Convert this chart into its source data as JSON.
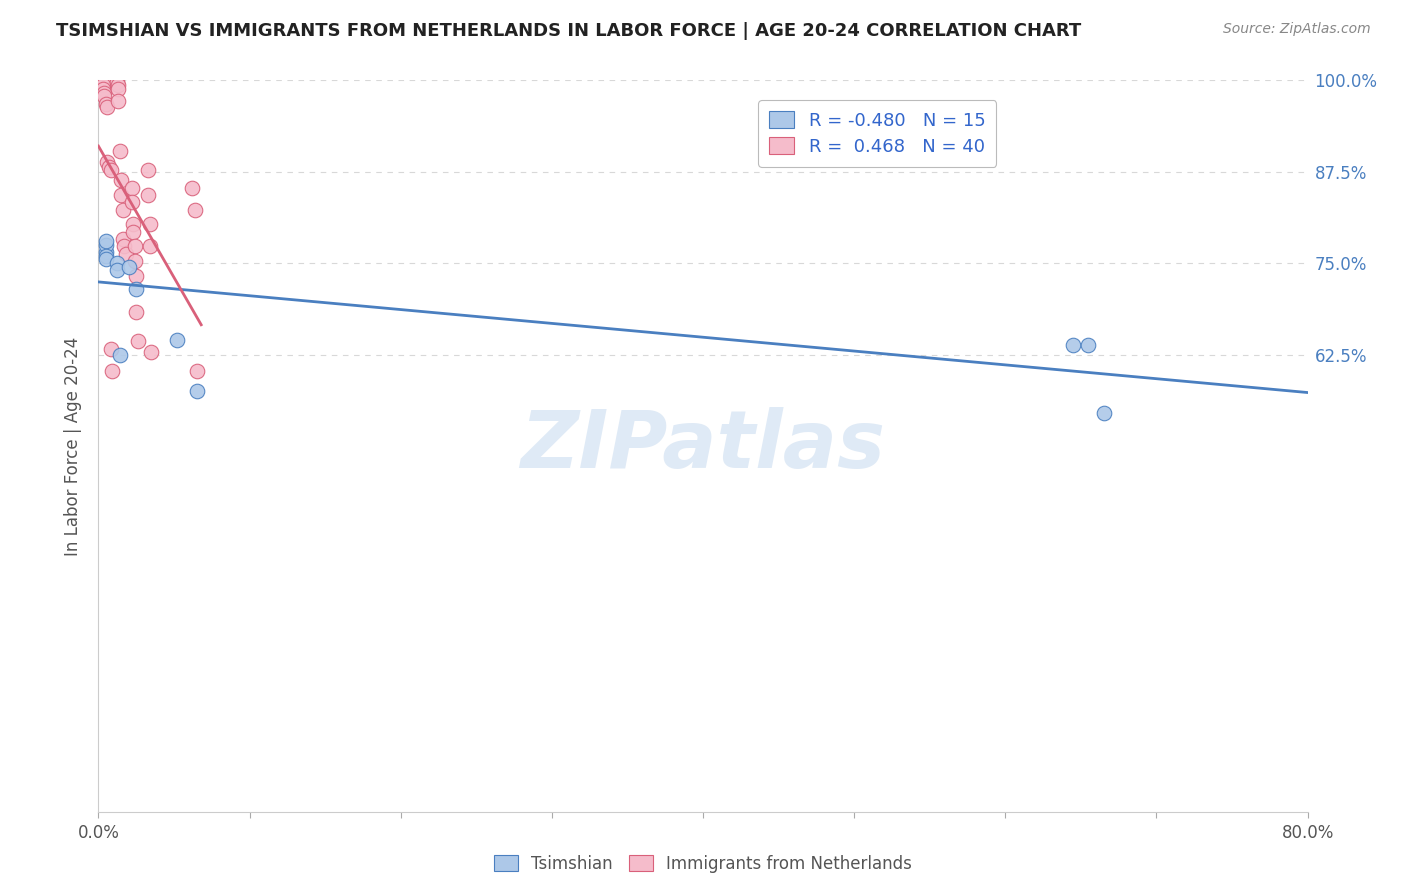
{
  "title": "TSIMSHIAN VS IMMIGRANTS FROM NETHERLANDS IN LABOR FORCE | AGE 20-24 CORRELATION CHART",
  "source": "Source: ZipAtlas.com",
  "ylabel": "In Labor Force | Age 20-24",
  "xmin": 0.0,
  "xmax": 0.8,
  "ymin": 0.0,
  "ymax": 1.0,
  "xticks": [
    0.0,
    0.1,
    0.2,
    0.3,
    0.4,
    0.5,
    0.6,
    0.7,
    0.8
  ],
  "xticklabels": [
    "0.0%",
    "",
    "",
    "",
    "",
    "",
    "",
    "",
    "80.0%"
  ],
  "yticks": [
    0.0,
    0.625,
    0.75,
    0.875,
    1.0
  ],
  "yticklabels": [
    "",
    "62.5%",
    "75.0%",
    "87.5%",
    "100.0%"
  ],
  "blue_color": "#adc8e8",
  "pink_color": "#f5bccb",
  "blue_line_color": "#4a7fc0",
  "pink_line_color": "#d9607a",
  "R_blue": -0.48,
  "N_blue": 15,
  "R_pink": 0.468,
  "N_pink": 40,
  "tsimshian_x": [
    0.005,
    0.005,
    0.005,
    0.005,
    0.005,
    0.012,
    0.012,
    0.014,
    0.02,
    0.025,
    0.052,
    0.065,
    0.645,
    0.655,
    0.665
  ],
  "tsimshian_y": [
    0.765,
    0.775,
    0.78,
    0.76,
    0.755,
    0.75,
    0.74,
    0.625,
    0.745,
    0.715,
    0.645,
    0.575,
    0.638,
    0.638,
    0.545
  ],
  "netherlands_x": [
    0.002,
    0.003,
    0.003,
    0.004,
    0.004,
    0.005,
    0.006,
    0.006,
    0.007,
    0.008,
    0.008,
    0.009,
    0.012,
    0.013,
    0.013,
    0.013,
    0.014,
    0.015,
    0.015,
    0.016,
    0.016,
    0.017,
    0.018,
    0.022,
    0.022,
    0.023,
    0.023,
    0.024,
    0.024,
    0.025,
    0.025,
    0.026,
    0.033,
    0.033,
    0.034,
    0.034,
    0.035,
    0.062,
    0.064,
    0.065
  ],
  "netherlands_y": [
    0.997,
    0.993,
    0.988,
    0.983,
    0.978,
    0.968,
    0.963,
    0.888,
    0.882,
    0.877,
    0.633,
    0.603,
    0.997,
    0.993,
    0.988,
    0.972,
    0.903,
    0.863,
    0.843,
    0.823,
    0.783,
    0.773,
    0.763,
    0.853,
    0.833,
    0.803,
    0.793,
    0.773,
    0.753,
    0.733,
    0.683,
    0.643,
    0.878,
    0.843,
    0.803,
    0.773,
    0.628,
    0.853,
    0.823,
    0.603
  ],
  "pink_line_x_end": 0.068,
  "watermark_text": "ZIPatlas",
  "background_color": "#ffffff",
  "grid_color": "#d8d8d8",
  "watermark_color": "#dce8f5"
}
